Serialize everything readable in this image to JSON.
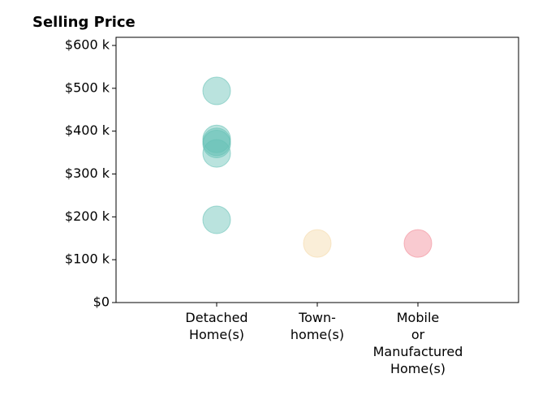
{
  "chart_data": {
    "type": "scatter",
    "title": "Selling Price",
    "categories": [
      "Detached\nHome(s)",
      "Town-\nhome(s)",
      "Mobile\nor\nManufactured\nHome(s)"
    ],
    "series": [
      {
        "color": "#66c2b5",
        "values": [
          494000,
          382000,
          375000,
          370000,
          348000,
          193000
        ]
      },
      {
        "color": "#f5d9a8",
        "values": [
          138000
        ]
      },
      {
        "color": "#f28a96",
        "values": [
          138000
        ]
      }
    ],
    "ylim": [
      0,
      619000
    ],
    "yticks": [
      {
        "value": 0,
        "label": "$0"
      },
      {
        "value": 100000,
        "label": "$100 k"
      },
      {
        "value": 200000,
        "label": "$200 k"
      },
      {
        "value": 300000,
        "label": "$300 k"
      },
      {
        "value": 400000,
        "label": "$400 k"
      },
      {
        "value": 500000,
        "label": "$500 k"
      },
      {
        "value": 600000,
        "label": "$600 k"
      }
    ]
  }
}
